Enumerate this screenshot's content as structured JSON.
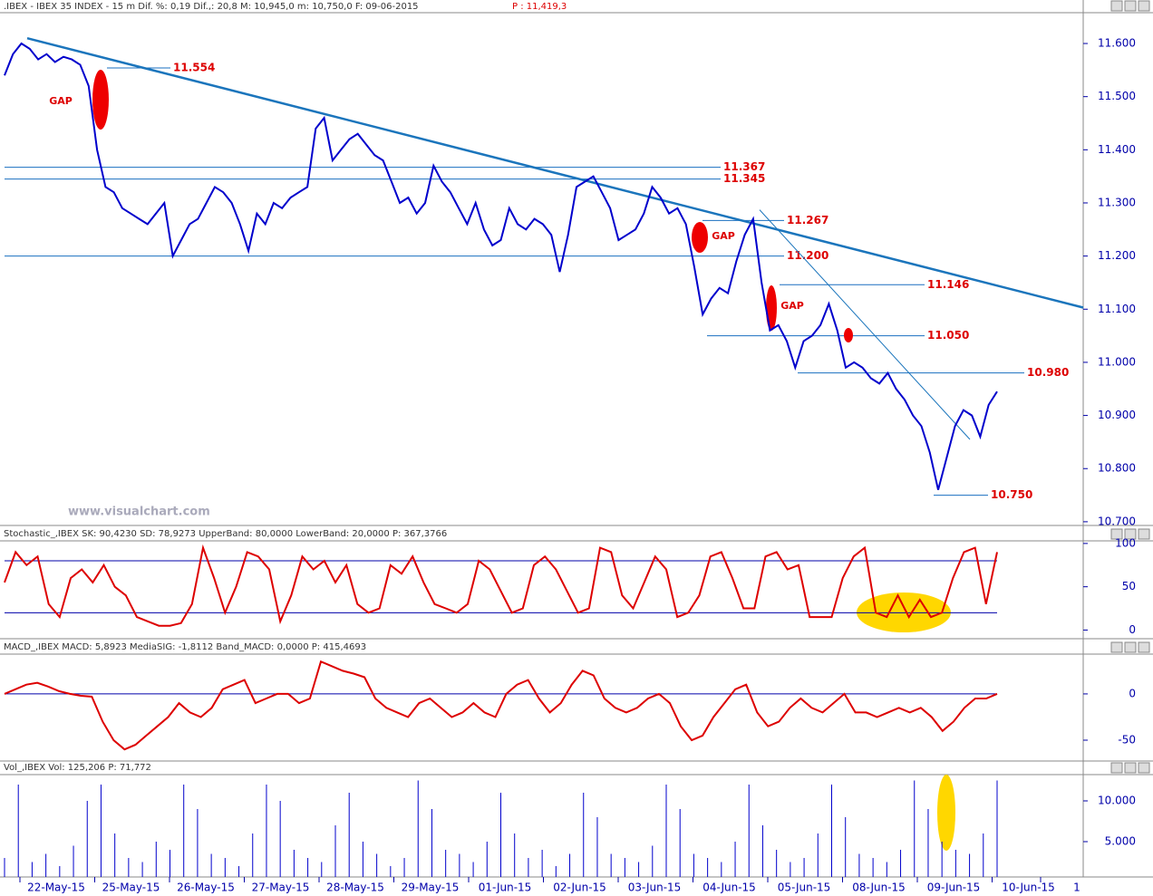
{
  "header": {
    "title": ".IBEX - IBEX 35 INDEX -  15 m Dif. %: 0,19 Dif.,: 20,8 M: 10,945,0 m: 10,750,0 F: 09-06-2015",
    "price": "P : 11,419,3"
  },
  "watermark": "www.visualchart.com",
  "x_axis": {
    "labels": [
      "22-May-15",
      "25-May-15",
      "26-May-15",
      "27-May-15",
      "28-May-15",
      "29-May-15",
      "01-Jun-15",
      "02-Jun-15",
      "03-Jun-15",
      "04-Jun-15",
      "05-Jun-15",
      "08-Jun-15",
      "09-Jun-15",
      "10-Jun-15",
      "1"
    ]
  },
  "chart_data": [
    {
      "type": "line",
      "series": [
        {
          "color": "#0000cc",
          "values": [
            11540,
            11580,
            11600,
            11590,
            11570,
            11580,
            11565,
            11575,
            11570,
            11560,
            11520,
            11400,
            11330,
            11320,
            11290,
            11280,
            11270,
            11260,
            11280,
            11300,
            11200,
            11230,
            11260,
            11270,
            11300,
            11330,
            11320,
            11300,
            11260,
            11210,
            11280,
            11260,
            11300,
            11290,
            11310,
            11320,
            11330,
            11440,
            11460,
            11380,
            11400,
            11420,
            11430,
            11410,
            11390,
            11380,
            11340,
            11300,
            11310,
            11280,
            11300,
            11370,
            11340,
            11320,
            11290,
            11260,
            11300,
            11250,
            11220,
            11230,
            11290,
            11260,
            11250,
            11270,
            11260,
            11240,
            11170,
            11240,
            11330,
            11340,
            11350,
            11320,
            11290,
            11230,
            11240,
            11250,
            11280,
            11330,
            11310,
            11280,
            11290,
            11260,
            11180,
            11090,
            11120,
            11140,
            11130,
            11190,
            11240,
            11270,
            11150,
            11060,
            11070,
            11040,
            10990,
            11040,
            11050,
            11070,
            11110,
            11060,
            10990,
            11000,
            10990,
            10970,
            10960,
            10980,
            10950,
            10930,
            10900,
            10880,
            10830,
            10760,
            10820,
            10880,
            10910,
            10900,
            10860,
            10920,
            10945
          ]
        }
      ],
      "ylim": [
        10693,
        11658
      ],
      "yticks": [
        {
          "value": 10700,
          "label": "10.700"
        },
        {
          "value": 10800,
          "label": "10.800"
        },
        {
          "value": 10900,
          "label": "10.900"
        },
        {
          "value": 11000,
          "label": "11.000"
        },
        {
          "value": 11100,
          "label": "11.100"
        },
        {
          "value": 11200,
          "label": "11.200"
        },
        {
          "value": 11300,
          "label": "11.300"
        },
        {
          "value": 11400,
          "label": "11.400"
        },
        {
          "value": 11500,
          "label": "11.500"
        },
        {
          "value": 11600,
          "label": "11.600"
        }
      ],
      "levels": [
        {
          "value": 11554,
          "label": "11.554"
        },
        {
          "value": 11367,
          "label": "11.367"
        },
        {
          "value": 11345,
          "label": "11.345"
        },
        {
          "value": 11267,
          "label": "11.267"
        },
        {
          "value": 11200,
          "label": "11.200"
        },
        {
          "value": 11146,
          "label": "11.146"
        },
        {
          "value": 11050,
          "label": "11.050"
        },
        {
          "value": 10980,
          "label": "10.980"
        },
        {
          "value": 10750,
          "label": "10.750"
        }
      ],
      "trendlines": [
        [
          11610,
          11103
        ],
        [
          11287,
          10855
        ]
      ],
      "annotations": [
        "GAP",
        "GAP",
        "GAP"
      ]
    },
    {
      "type": "line",
      "title": "Stochastic_,IBEX SK: 90,4230 SD: 78,9273 UpperBand: 80,0000 LowerBand: 20,0000 P: 367,3766",
      "series": [
        {
          "color": "#dd0000",
          "values": [
            55,
            90,
            75,
            85,
            30,
            15,
            60,
            70,
            55,
            75,
            50,
            40,
            15,
            10,
            5,
            5,
            8,
            30,
            95,
            60,
            20,
            50,
            90,
            85,
            70,
            10,
            40,
            85,
            70,
            80,
            55,
            75,
            30,
            20,
            25,
            75,
            65,
            85,
            55,
            30,
            25,
            20,
            30,
            80,
            70,
            45,
            20,
            25,
            75,
            85,
            70,
            45,
            20,
            25,
            95,
            90,
            40,
            25,
            55,
            85,
            70,
            15,
            20,
            40,
            85,
            90,
            60,
            25,
            25,
            85,
            90,
            70,
            75,
            15,
            15,
            15,
            60,
            85,
            95,
            20,
            15,
            40,
            15,
            35,
            15,
            20,
            60,
            90,
            95,
            30,
            90
          ]
        }
      ],
      "ylim": [
        -10,
        103
      ],
      "yticks": [
        0,
        50,
        100
      ],
      "bands": [
        80,
        20
      ]
    },
    {
      "type": "line",
      "title": "MACD_,IBEX MACD: 5,8923 MediaSIG: -1,8112 Band_MACD: 0,0000 P: 415,4693",
      "series": [
        {
          "color": "#dd0000",
          "values": [
            0,
            5,
            10,
            12,
            8,
            3,
            0,
            -2,
            -3,
            -30,
            -50,
            -60,
            -55,
            -45,
            -35,
            -25,
            -10,
            -20,
            -25,
            -15,
            5,
            10,
            15,
            -10,
            -5,
            0,
            0,
            -10,
            -5,
            35,
            30,
            25,
            22,
            18,
            -5,
            -15,
            -20,
            -25,
            -10,
            -5,
            -15,
            -25,
            -20,
            -10,
            -20,
            -25,
            0,
            10,
            15,
            -5,
            -20,
            -10,
            10,
            25,
            20,
            -5,
            -15,
            -20,
            -15,
            -5,
            0,
            -10,
            -35,
            -50,
            -45,
            -25,
            -10,
            5,
            10,
            -20,
            -35,
            -30,
            -15,
            -5,
            -15,
            -20,
            -10,
            0,
            -20,
            -20,
            -25,
            -20,
            -15,
            -20,
            -15,
            -25,
            -40,
            -30,
            -15,
            -5,
            -5,
            0
          ]
        }
      ],
      "ylim": [
        -72.5,
        43
      ],
      "yticks": [
        -50,
        0
      ],
      "bands": [
        0
      ]
    },
    {
      "type": "bar",
      "title": "Vol_,IBEX Vol: 125,206 P: 71,772",
      "series": [
        {
          "color": "#0000cc",
          "values": [
            3000,
            12000,
            2500,
            3500,
            2000,
            4500,
            10000,
            12000,
            6000,
            3000,
            2500,
            5000,
            4000,
            12000,
            9000,
            3500,
            3000,
            2000,
            6000,
            12000,
            10000,
            4000,
            3000,
            2500,
            7000,
            11000,
            5000,
            3500,
            2000,
            3000,
            12500,
            9000,
            4000,
            3500,
            2500,
            5000,
            11000,
            6000,
            3000,
            4000,
            2000,
            3500,
            11000,
            8000,
            3500,
            3000,
            2500,
            4500,
            12000,
            9000,
            3500,
            3000,
            2500,
            5000,
            12000,
            7000,
            4000,
            2500,
            3000,
            6000,
            12000,
            8000,
            3500,
            3000,
            2500,
            4000,
            12500,
            9000,
            5000,
            4000,
            3500,
            6000,
            12500
          ]
        }
      ],
      "ylim": [
        667,
        13222
      ],
      "yticks": [
        {
          "value": 5000,
          "label": "5.000"
        },
        {
          "value": 10000,
          "label": "10.000"
        }
      ]
    }
  ]
}
